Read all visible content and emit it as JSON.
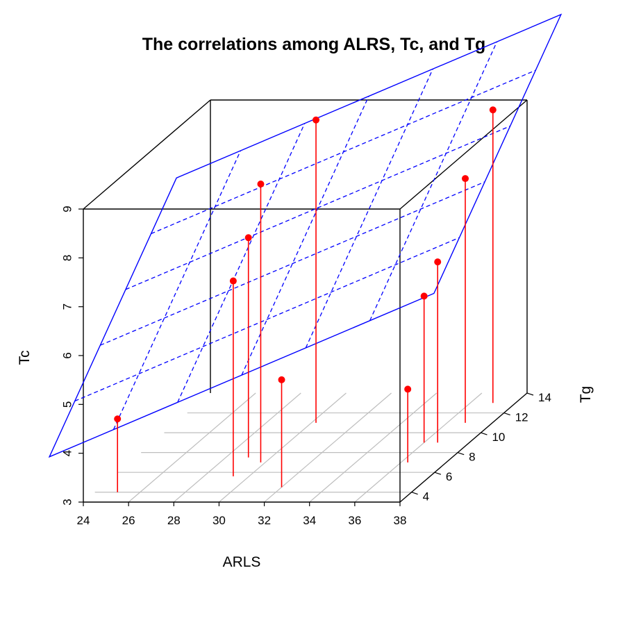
{
  "chart_data": {
    "type": "scatter3d",
    "title": "The correlations among ALRS, Tc, and Tg",
    "xlabel": "ARLS",
    "ylabel": "Tg",
    "zlabel": "Tc",
    "xlim": [
      24,
      38
    ],
    "ylim": [
      3,
      14
    ],
    "zlim": [
      3,
      9
    ],
    "x_ticks": [
      "24",
      "26",
      "28",
      "30",
      "32",
      "34",
      "36",
      "38"
    ],
    "y_ticks": [
      "4",
      "6",
      "8",
      "10",
      "12",
      "14"
    ],
    "z_ticks": [
      "3",
      "4",
      "5",
      "6",
      "7",
      "8",
      "9"
    ],
    "points": [
      {
        "x": 25.0,
        "y": 4.0,
        "z": 4.5
      },
      {
        "x": 29.0,
        "y": 7.5,
        "z": 7.5
      },
      {
        "x": 29.3,
        "y": 5.6,
        "z": 7.0
      },
      {
        "x": 29.8,
        "y": 7.0,
        "z": 8.7
      },
      {
        "x": 30.2,
        "y": 11.0,
        "z": 9.2
      },
      {
        "x": 32.0,
        "y": 4.5,
        "z": 5.2
      },
      {
        "x": 36.0,
        "y": 9.0,
        "z": 6.0
      },
      {
        "x": 36.3,
        "y": 7.0,
        "z": 4.5
      },
      {
        "x": 36.6,
        "y": 9.0,
        "z": 6.7
      },
      {
        "x": 36.8,
        "y": 11.0,
        "z": 8.0
      },
      {
        "x": 37.0,
        "y": 13.0,
        "z": 9.0
      }
    ],
    "regression_plane": {
      "intercept": -1.45,
      "coef_x": 0.1968,
      "coef_y": 0.3162
    },
    "colors": {
      "points": "#ff0000",
      "plane": "#0000ff",
      "box": "#000000",
      "grid": "#bebebe"
    },
    "grid": true
  }
}
